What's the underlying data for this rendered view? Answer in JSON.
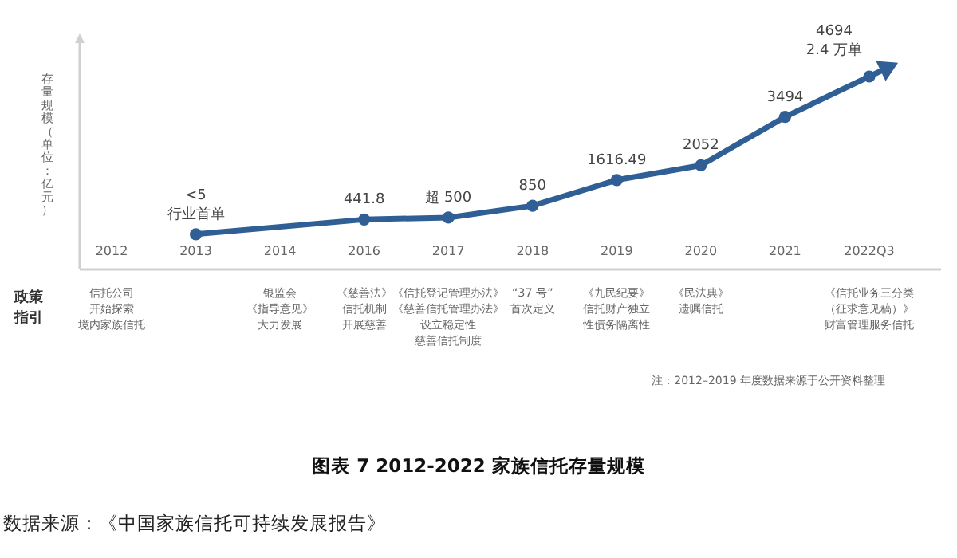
{
  "chart_data": {
    "type": "line",
    "ylabel": "存量规模（单位：亿元）",
    "title": "图表  7 2012-2022 家族信托存量规模",
    "categories": [
      "2012",
      "2013",
      "2014",
      "2016",
      "2017",
      "2018",
      "2019",
      "2020",
      "2021",
      "2022Q3"
    ],
    "series": [
      {
        "color": "#2f5f95",
        "values": [
          null,
          5,
          null,
          441.8,
          500,
          850,
          1616.49,
          2052,
          3494,
          4694
        ],
        "value_labels": [
          null,
          "<5\n行业首单",
          null,
          "441.8",
          "超 500",
          "850",
          "1616.49",
          "2052",
          "3494",
          "4694\n2.4 万单"
        ]
      }
    ],
    "marker": "circle",
    "annotations": [
      "政策指引",
      "信托公司开始探索境内家族信托",
      "银监会《指导意见》大力发展",
      "《慈善法》信托机制开展慈善",
      "《信托登记管理办法》《慈善信托管理办法》设立稳定性慈善信托制度",
      "“37 号”首次定义",
      "《九民纪要》信托财产独立性债务隔离性",
      "《民法典》遗嘱信托",
      "《信托业务三分类（征求意见稿）》财富管理服务信托",
      "注：2012–2019 年度数据来源于公开资料整理",
      "数据来源：《中国家族信托可持续发展报告》"
    ]
  }
}
